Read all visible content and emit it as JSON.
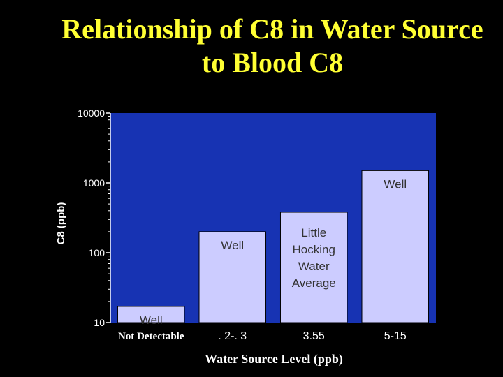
{
  "title_lines": [
    "Relationship of C8 in Water Source",
    "to Blood C8"
  ],
  "colors": {
    "background": "#000000",
    "title": "#FFFF33",
    "plot_area": "#1733B3",
    "bar_fill": "#CCCCFF",
    "bar_stroke": "#000000",
    "text": "#FFFFFF"
  },
  "chart_data": {
    "type": "bar",
    "title": "Relationship of C8 in Water Source to Blood C8",
    "xlabel": "Water Source Level (ppb)",
    "ylabel": "C8  (ppb)",
    "yscale": "log",
    "ylim": [
      10,
      10000
    ],
    "yticks": [
      10,
      100,
      1000,
      10000
    ],
    "ytick_labels": [
      "10",
      "100",
      "1000",
      "10000"
    ],
    "grid": false,
    "categories": [
      "Not Detectable",
      ". 2-. 3",
      "3.55",
      "5-15"
    ],
    "values": [
      17,
      200,
      380,
      1500
    ],
    "bar_labels": [
      "Well",
      "Well",
      "Little\nHocking\nWater\nAverage",
      "Well"
    ]
  }
}
